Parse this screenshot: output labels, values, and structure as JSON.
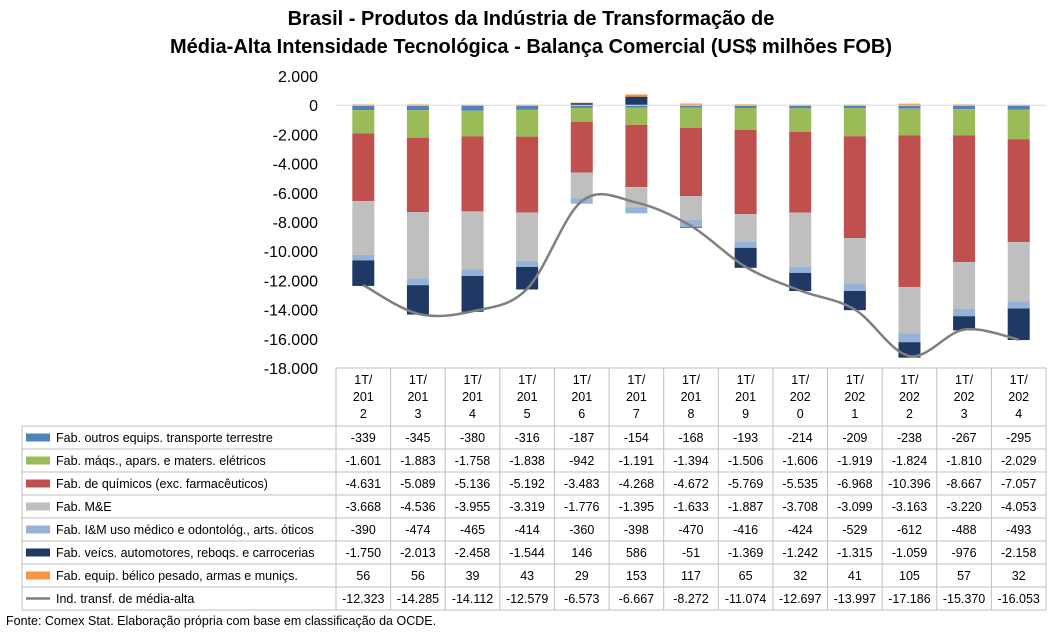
{
  "title_line1": "Brasil - Produtos da Indústria de Transformação de",
  "title_line2": "Média-Alta Intensidade Tecnológica - Balança Comercial (US$ milhões FOB)",
  "source": "Fonte: Comex Stat. Elaboração própria com base em classificação da OCDE.",
  "chart_data": {
    "type": "bar",
    "stacked": true,
    "ylim": [
      -18000,
      2000
    ],
    "y_ticks": [
      2000,
      0,
      -2000,
      -4000,
      -6000,
      -8000,
      -10000,
      -12000,
      -14000,
      -16000,
      -18000
    ],
    "y_tick_labels": [
      "2.000",
      "0",
      "-2.000",
      "-4.000",
      "-6.000",
      "-8.000",
      "-10.000",
      "-12.000",
      "-14.000",
      "-16.000",
      "-18.000"
    ],
    "categories": [
      [
        "1T/",
        "201",
        "2"
      ],
      [
        "1T/",
        "201",
        "3"
      ],
      [
        "1T/",
        "201",
        "4"
      ],
      [
        "1T/",
        "201",
        "5"
      ],
      [
        "1T/",
        "201",
        "6"
      ],
      [
        "1T/",
        "201",
        "7"
      ],
      [
        "1T/",
        "201",
        "8"
      ],
      [
        "1T/",
        "201",
        "9"
      ],
      [
        "1T/",
        "202",
        "0"
      ],
      [
        "1T/",
        "202",
        "1"
      ],
      [
        "1T/",
        "202",
        "2"
      ],
      [
        "1T/",
        "202",
        "3"
      ],
      [
        "1T/",
        "202",
        "4"
      ]
    ],
    "series": [
      {
        "name": "Fab. outros equips. transporte terrestre",
        "kind": "bar",
        "color": "#4f81bd",
        "values": [
          -339,
          -345,
          -380,
          -316,
          -187,
          -154,
          -168,
          -193,
          -214,
          -209,
          -238,
          -267,
          -295
        ],
        "labels": [
          "-339",
          "-345",
          "-380",
          "-316",
          "-187",
          "-154",
          "-168",
          "-193",
          "-214",
          "-209",
          "-238",
          "-267",
          "-295"
        ]
      },
      {
        "name": "Fab. máqs., apars. e maters. elétricos",
        "kind": "bar",
        "color": "#9bbb59",
        "values": [
          -1601,
          -1883,
          -1758,
          -1838,
          -942,
          -1191,
          -1394,
          -1506,
          -1606,
          -1919,
          -1824,
          -1810,
          -2029
        ],
        "labels": [
          "-1.601",
          "-1.883",
          "-1.758",
          "-1.838",
          "-942",
          "-1.191",
          "-1.394",
          "-1.506",
          "-1.606",
          "-1.919",
          "-1.824",
          "-1.810",
          "-2.029"
        ]
      },
      {
        "name": "Fab. de químicos (exc. farmacêuticos)",
        "kind": "bar",
        "color": "#c0504d",
        "values": [
          -4631,
          -5089,
          -5136,
          -5192,
          -3483,
          -4268,
          -4672,
          -5769,
          -5535,
          -6968,
          -10396,
          -8667,
          -7057
        ],
        "labels": [
          "-4.631",
          "-5.089",
          "-5.136",
          "-5.192",
          "-3.483",
          "-4.268",
          "-4.672",
          "-5.769",
          "-5.535",
          "-6.968",
          "-10.396",
          "-8.667",
          "-7.057"
        ]
      },
      {
        "name": "Fab. M&E",
        "kind": "bar",
        "color": "#bfbfbf",
        "values": [
          -3668,
          -4536,
          -3955,
          -3319,
          -1776,
          -1395,
          -1633,
          -1887,
          -3708,
          -3099,
          -3163,
          -3220,
          -4053
        ],
        "labels": [
          "-3.668",
          "-4.536",
          "-3.955",
          "-3.319",
          "-1.776",
          "-1.395",
          "-1.633",
          "-1.887",
          "-3.708",
          "-3.099",
          "-3.163",
          "-3.220",
          "-4.053"
        ]
      },
      {
        "name": "Fab. I&M uso médico e odontológ., arts. óticos",
        "kind": "bar",
        "color": "#95b3d7",
        "values": [
          -390,
          -474,
          -465,
          -414,
          -360,
          -398,
          -470,
          -416,
          -424,
          -529,
          -612,
          -488,
          -493
        ],
        "labels": [
          "-390",
          "-474",
          "-465",
          "-414",
          "-360",
          "-398",
          "-470",
          "-416",
          "-424",
          "-529",
          "-612",
          "-488",
          "-493"
        ]
      },
      {
        "name": "Fab. veícs. automotores, reboqs. e carrocerias",
        "kind": "bar",
        "color": "#1f3864",
        "values": [
          -1750,
          -2013,
          -2458,
          -1544,
          146,
          586,
          -51,
          -1369,
          -1242,
          -1315,
          -1059,
          -976,
          -2158
        ],
        "labels": [
          "-1.750",
          "-2.013",
          "-2.458",
          "-1.544",
          "146",
          "586",
          "-51",
          "-1.369",
          "-1.242",
          "-1.315",
          "-1.059",
          "-976",
          "-2.158"
        ]
      },
      {
        "name": "Fab. equip. bélico pesado, armas e muniçs.",
        "kind": "bar",
        "color": "#f79646",
        "values": [
          56,
          56,
          39,
          43,
          29,
          153,
          117,
          65,
          32,
          41,
          105,
          57,
          32
        ],
        "labels": [
          "56",
          "56",
          "39",
          "43",
          "29",
          "153",
          "117",
          "65",
          "32",
          "41",
          "105",
          "57",
          "32"
        ]
      },
      {
        "name": "Ind. transf. de média-alta",
        "kind": "line",
        "color": "#7f7f7f",
        "values": [
          -12323,
          -14285,
          -14112,
          -12579,
          -6573,
          -6667,
          -8272,
          -11074,
          -12697,
          -13997,
          -17186,
          -15370,
          -16053
        ],
        "labels": [
          "-12.323",
          "-14.285",
          "-14.112",
          "-12.579",
          "-6.573",
          "-6.667",
          "-8.272",
          "-11.074",
          "-12.697",
          "-13.997",
          "-17.186",
          "-15.370",
          "-16.053"
        ]
      }
    ]
  }
}
